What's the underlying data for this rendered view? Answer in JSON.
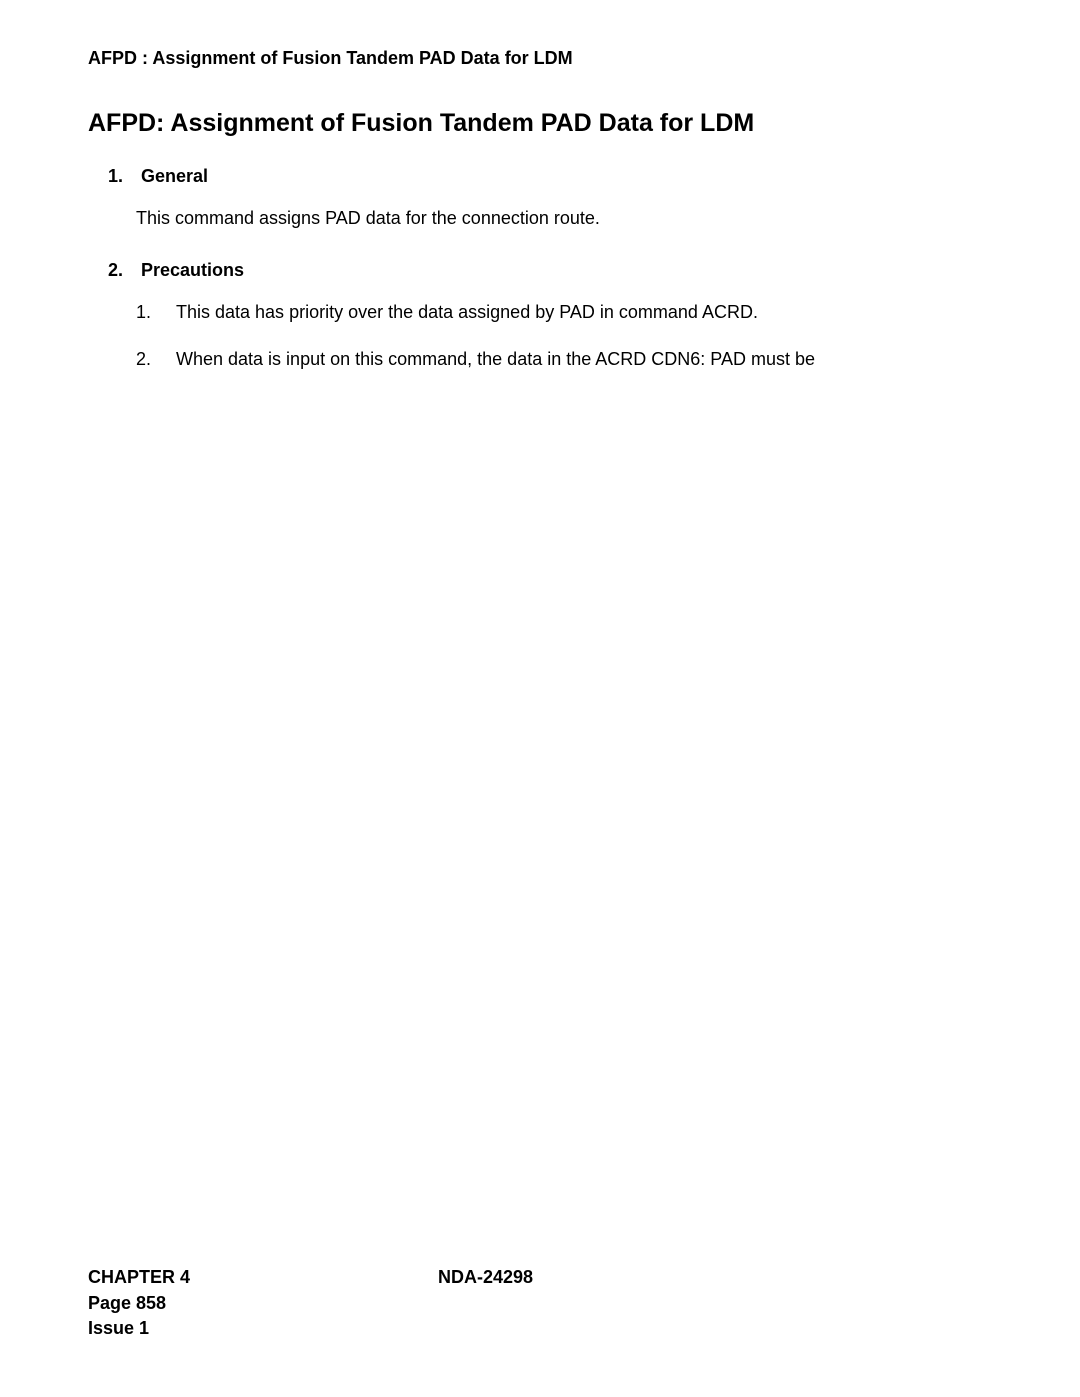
{
  "header": "AFPD : Assignment of Fusion Tandem PAD Data for LDM",
  "title": "AFPD: Assignment of Fusion Tandem PAD Data for LDM",
  "sections": [
    {
      "number": "1.",
      "heading": "General",
      "paragraph": "This command assigns PAD data for the connection route."
    },
    {
      "number": "2.",
      "heading": "Precautions",
      "items": [
        {
          "number": "1.",
          "text": "This data has priority over the data assigned by PAD in command ACRD."
        },
        {
          "number": "2.",
          "text": "When data is input on this command, the data in the ACRD CDN6: PAD must be"
        }
      ]
    }
  ],
  "footer": {
    "chapter": "CHAPTER 4",
    "doc": "NDA-24298",
    "page": "Page 858",
    "issue": "Issue 1"
  }
}
